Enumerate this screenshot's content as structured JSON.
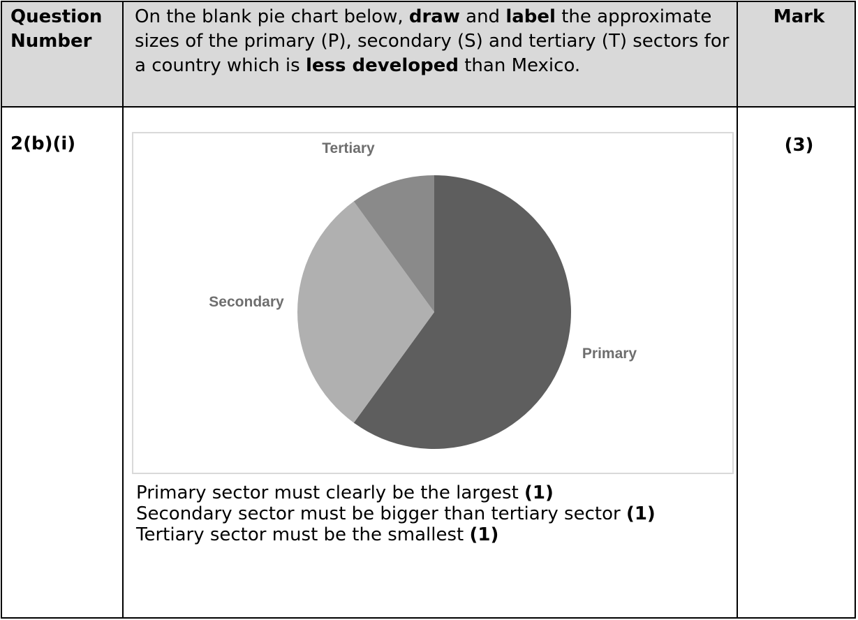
{
  "header": {
    "question_number_label": [
      "Question",
      "Number"
    ],
    "instruction": {
      "p1": "On the blank pie chart below, ",
      "b1": "draw",
      "p2": " and ",
      "b2": "label",
      "p3": " the approximate sizes of the primary (P), secondary (S) and tertiary (T) sectors for a country which is ",
      "b3": "less developed",
      "p4": " than Mexico."
    },
    "mark_label": "Mark"
  },
  "question": {
    "number": "2(b)(i)",
    "mark": "(3)"
  },
  "chart_data": {
    "type": "pie",
    "slices": [
      {
        "label": "Primary",
        "value": 60,
        "color": "#5e5e5e"
      },
      {
        "label": "Secondary",
        "value": 30,
        "color": "#b0b0b0"
      },
      {
        "label": "Tertiary",
        "value": 10,
        "color": "#8a8a8a"
      }
    ],
    "start": "12 o'clock",
    "direction": "clockwise",
    "legend": "none"
  },
  "criteria": [
    {
      "text": "Primary sector must clearly be the largest ",
      "mark": "(1)"
    },
    {
      "text": "Secondary sector must be bigger than tertiary sector ",
      "mark": "(1)"
    },
    {
      "text": "Tertiary sector must be the smallest ",
      "mark": "(1)"
    }
  ]
}
